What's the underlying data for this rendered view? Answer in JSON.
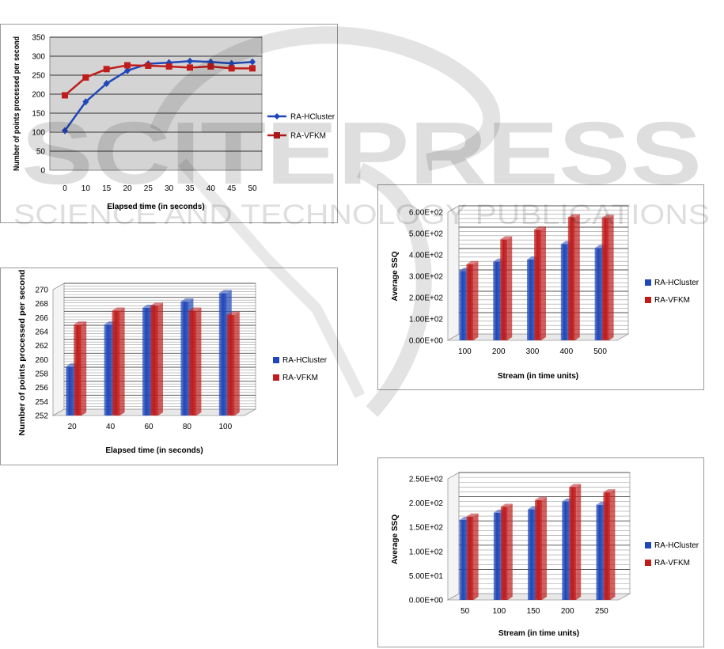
{
  "watermark": {
    "main": "SCITEPRESS",
    "sub": "SCIENCE AND TECHNOLOGY PUBLICATIONS"
  },
  "colors": {
    "s1": "#1f47b8",
    "s2": "#c01c1c",
    "plot_bg": "#d4d4d4"
  },
  "chart_data": [
    {
      "type": "line",
      "title": "",
      "xlabel": "Elapsed time (in seconds)",
      "ylabel": "Number of points processed per second",
      "x": [
        0,
        10,
        15,
        20,
        25,
        30,
        35,
        40,
        45,
        50
      ],
      "ylim": [
        0,
        350
      ],
      "yticks": [
        0,
        50,
        100,
        150,
        200,
        250,
        300,
        350
      ],
      "grid": true,
      "legend": "right",
      "series": [
        {
          "name": "RA-HCluster",
          "values": [
            104,
            180,
            228,
            262,
            280,
            283,
            287,
            285,
            281,
            285
          ]
        },
        {
          "name": "RA-VFKM",
          "values": [
            197,
            244,
            266,
            276,
            275,
            273,
            270,
            273,
            268,
            268
          ]
        }
      ]
    },
    {
      "type": "bar",
      "title": "",
      "xlabel": "Elapsed time (in seconds)",
      "ylabel": "Number of points processed per second",
      "categories": [
        "20",
        "40",
        "60",
        "80",
        "100"
      ],
      "ylim": [
        252,
        270
      ],
      "yticks": [
        "252",
        "254",
        "256",
        "258",
        "260",
        "262",
        "264",
        "266",
        "268",
        "270"
      ],
      "grid": true,
      "legend": "right",
      "series": [
        {
          "name": "RA-HCluster",
          "values": [
            259,
            265,
            267.4,
            268.3,
            269.5
          ]
        },
        {
          "name": "RA-VFKM",
          "values": [
            265,
            267,
            267.7,
            267,
            266.4
          ]
        }
      ]
    },
    {
      "type": "bar",
      "title": "",
      "xlabel": "Stream (in time units)",
      "ylabel": "Average SSQ",
      "categories": [
        "100",
        "200",
        "300",
        "400",
        "500"
      ],
      "ylim": [
        0,
        600
      ],
      "yticks": [
        "0.00E+00",
        "1.00E+02",
        "2.00E+02",
        "3.00E+02",
        "4.00E+02",
        "5.00E+02",
        "6.00E+02"
      ],
      "grid": true,
      "legend": "right",
      "series": [
        {
          "name": "RA-HCluster",
          "values": [
            325,
            368,
            378,
            450,
            432
          ]
        },
        {
          "name": "RA-VFKM",
          "values": [
            356,
            472,
            518,
            576,
            573
          ]
        }
      ]
    },
    {
      "type": "bar",
      "title": "",
      "xlabel": "Stream (in time units)",
      "ylabel": "Average SSQ",
      "categories": [
        "50",
        "100",
        "150",
        "200",
        "250"
      ],
      "ylim": [
        0,
        250
      ],
      "yticks": [
        "0.00E+00",
        "5.00E+01",
        "1.00E+02",
        "1.50E+02",
        "2.00E+02",
        "2.50E+02"
      ],
      "grid": true,
      "legend": "right",
      "series": [
        {
          "name": "RA-HCluster",
          "values": [
            165,
            180,
            187,
            203,
            196
          ]
        },
        {
          "name": "RA-VFKM",
          "values": [
            172,
            192,
            206,
            233,
            222
          ]
        }
      ]
    }
  ]
}
